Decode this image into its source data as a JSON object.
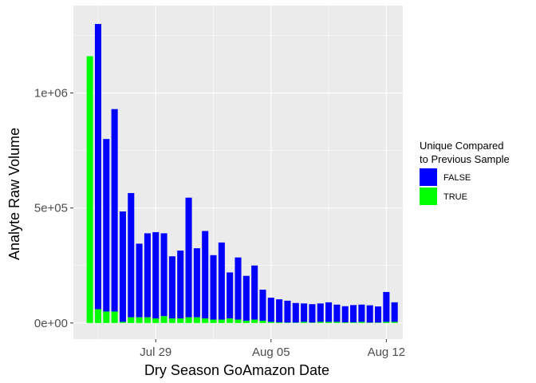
{
  "chart_data": {
    "type": "bar",
    "stacked": true,
    "xlabel": "Dry Season GoAmazon Date",
    "ylabel": "Analyte Raw Volume",
    "x_ticks": [
      "Jul 29",
      "Aug 05",
      "Aug 12"
    ],
    "x_tick_dates": [
      "2014-07-29",
      "2014-08-05",
      "2014-08-12"
    ],
    "xlim": [
      "2014-07-24",
      "2014-08-13"
    ],
    "y_ticks": [
      "0e+00",
      "5e+05",
      "1e+06"
    ],
    "y_tick_values": [
      0,
      500000,
      1000000
    ],
    "ylim": [
      -70000,
      1380000
    ],
    "grid": true,
    "panel_background": "#EBEBEB",
    "legend": {
      "title": "Unique Compared\n to Previous Sample",
      "position": "right",
      "entries": [
        {
          "label": "FALSE",
          "color": "#0000FF"
        },
        {
          "label": "TRUE",
          "color": "#00FF00"
        }
      ]
    },
    "series": [
      {
        "name": "FALSE",
        "color": "#0000FF",
        "values": [
          0,
          1240000,
          750000,
          880000,
          480000,
          540000,
          320000,
          365000,
          375000,
          360000,
          270000,
          295000,
          520000,
          300000,
          380000,
          280000,
          335000,
          200000,
          270000,
          195000,
          235000,
          135000,
          105000,
          100000,
          95000,
          85000,
          80000,
          80000,
          80000,
          85000,
          75000,
          70000,
          75000,
          75000,
          75000,
          70000,
          130000,
          85000
        ]
      },
      {
        "name": "TRUE",
        "color": "#00FF00",
        "values": [
          1160000,
          60000,
          50000,
          50000,
          5000,
          25000,
          25000,
          25000,
          20000,
          30000,
          20000,
          20000,
          25000,
          25000,
          20000,
          15000,
          15000,
          20000,
          15000,
          10000,
          15000,
          10000,
          5000,
          3000,
          2000,
          2000,
          5000,
          2000,
          5000,
          5000,
          5000,
          3000,
          3000,
          5000,
          2000,
          2000,
          5000,
          5000
        ]
      }
    ],
    "x": [
      "2014-07-25T00:00",
      "2014-07-25T12:00",
      "2014-07-26T00:00",
      "2014-07-26T12:00",
      "2014-07-27T00:00",
      "2014-07-27T12:00",
      "2014-07-28T00:00",
      "2014-07-28T12:00",
      "2014-07-29T00:00",
      "2014-07-29T12:00",
      "2014-07-30T00:00",
      "2014-07-30T12:00",
      "2014-07-31T00:00",
      "2014-07-31T12:00",
      "2014-08-01T00:00",
      "2014-08-01T12:00",
      "2014-08-02T00:00",
      "2014-08-02T12:00",
      "2014-08-03T00:00",
      "2014-08-03T12:00",
      "2014-08-04T00:00",
      "2014-08-04T12:00",
      "2014-08-05T00:00",
      "2014-08-05T12:00",
      "2014-08-06T00:00",
      "2014-08-06T12:00",
      "2014-08-07T00:00",
      "2014-08-07T12:00",
      "2014-08-08T00:00",
      "2014-08-08T12:00",
      "2014-08-09T00:00",
      "2014-08-09T12:00",
      "2014-08-10T00:00",
      "2014-08-10T12:00",
      "2014-08-11T00:00",
      "2014-08-11T12:00",
      "2014-08-12T00:00",
      "2014-08-12T12:00"
    ]
  }
}
